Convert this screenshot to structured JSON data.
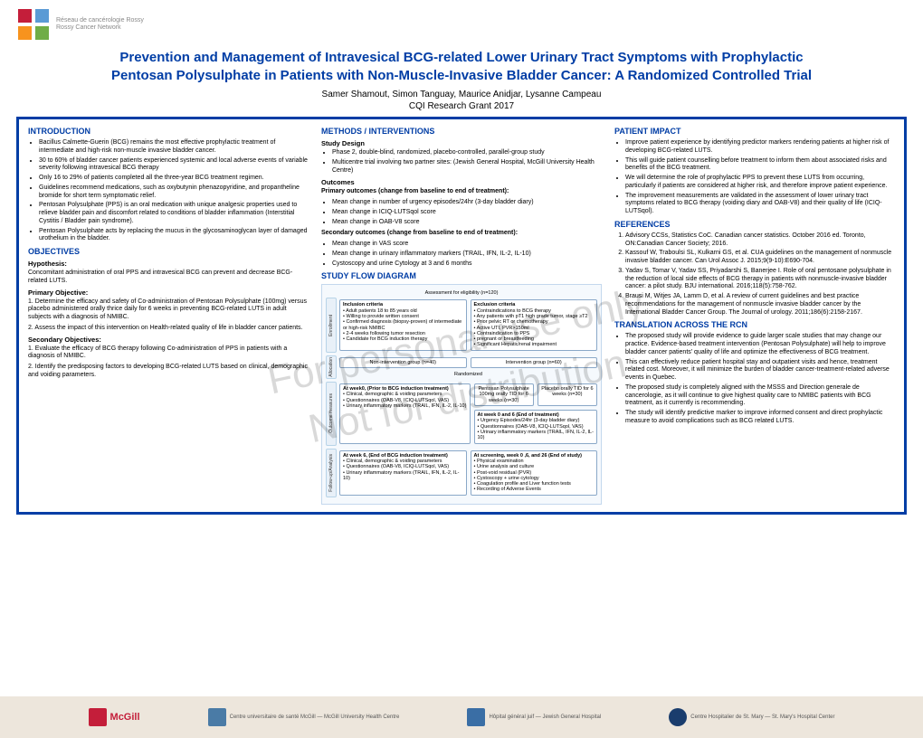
{
  "header": {
    "logo_text_fr": "Réseau de cancérologie Rossy",
    "logo_text_en": "Rossy Cancer Network",
    "title": "Prevention and Management of Intravesical BCG-related Lower Urinary Tract Symptoms with Prophylactic Pentosan Polysulphate in Patients with Non-Muscle-Invasive Bladder Cancer: A Randomized Controlled Trial",
    "authors": "Samer Shamout, Simon Tanguay, Maurice Anidjar, Lysanne Campeau",
    "grant": "CQI Research Grant 2017"
  },
  "watermark": {
    "line1": "For personal use only",
    "line2": "Not for distribution"
  },
  "introduction": {
    "heading": "INTRODUCTION",
    "bullets": [
      "Bacillus Calmette-Guerin (BCG) remains the most effective prophylactic treatment of intermediate and high-risk non-muscle invasive bladder cancer.",
      "30 to 60% of bladder cancer patients experienced systemic and local adverse events of variable severity following intravesical BCG therapy",
      "Only 16 to 29% of patients completed all the three-year BCG treatment regimen.",
      "Guidelines recommend medications, such as oxybutynin phenazopyridine, and propantheline bromide for short term symptomatic relief.",
      "Pentosan Polysulphate (PPS) is an oral medication with unique analgesic properties used to relieve bladder pain and discomfort related to conditions of bladder inflammation (Interstitial Cystitis / Bladder pain syndrome).",
      "Pentosan Polysulphate acts by replacing the mucus in the glycosaminoglycan layer of damaged urothelium in the bladder."
    ]
  },
  "objectives": {
    "heading": "OBJECTIVES",
    "hypothesis_label": "Hypothesis:",
    "hypothesis": "Concomitant administration of oral PPS and intravesical BCG can prevent and decrease BCG-related LUTS.",
    "primary_label": "Primary Objective:",
    "primary_items": [
      "1. Determine the efficacy and safety of Co-administration of Pentosan Polysulphate (100mg) versus placebo administered orally thrice daily for 6 weeks in preventing BCG-related LUTS in adult subjects with a diagnosis of NMIBC.",
      "2. Assess the impact of this intervention on Health-related quality of life in bladder cancer patients."
    ],
    "secondary_label": "Secondary Objectives:",
    "secondary_items": [
      "1. Evaluate the efficacy of BCG therapy following Co-administration of PPS in patients with a diagnosis of NMIBC.",
      "2. Identify the predisposing factors to developing BCG-related LUTS based on clinical, demographic and voiding parameters."
    ]
  },
  "methods": {
    "heading": "METHODS / INTERVENTIONS",
    "study_design_label": "Study Design",
    "study_design": [
      "Phase 2, double-blind, randomized, placebo-controlled, parallel-group study",
      "Multicentre trial involving two partner sites: (Jewish General Hospital, McGill University Health Centre)"
    ],
    "outcomes_label": "Outcomes",
    "primary_out_label": "Primary outcomes (change from baseline to end of treatment):",
    "primary_outcomes": [
      "Mean change in number of urgency episodes/24hr (3-day bladder diary)",
      "Mean change in ICIQ-LUTSqol score",
      "Mean change in OAB-V8 score"
    ],
    "secondary_out_label": "Secondary outcomes (change from baseline to end of treatment):",
    "secondary_outcomes": [
      "Mean change in VAS score",
      "Mean change in urinary inflammatory markers (TRAIL, IFN, IL-2, IL-10)",
      "Cystoscopy and urine Cytology at 3 and 6 months"
    ],
    "flow_heading": "STUDY FLOW DIAGRAM"
  },
  "diagram": {
    "assessment": "Assessment for eligibility (n=120)",
    "enrollment_label": "Enrollment",
    "inclusion_title": "Inclusion criteria",
    "inclusion": "• Adult patients 18 to 85 years old\n• Willing to provide written consent\n• Confirmed diagnosis (biopsy-proven) of intermediate or high-risk NMIBC\n• 2-4 weeks following tumor resection\n• Candidate for BCG induction therapy",
    "exclusion_title": "Exclusion criteria",
    "exclusion": "• Contraindications to BCG therapy\n• Any patients with pT1 high grade tumor, stage ≥T2\n• Prior pelvic RT or chemotherapy\n• Active UTI, PVR>150ml\n• Contraindication to PPS\n• pregnant or breastfeeding\n• Significant Hepatic/renal impairment",
    "allocation_label": "Allocation",
    "non_intervention": "Non-intervention group (n=40)",
    "intervention": "Intervention group (n=60)",
    "randomized": "Randomized",
    "outcome_label": "Outcome measures",
    "week0_title": "At week0, (Prior to BCG induction treatment)",
    "week0": "• Clinical, demographic & voiding parameters\n• Questionnaires (OAB-V8, ICIQ-LUTSqol, VAS)\n• Urinary inflammatory markers (TRAIL, IFN, IL-2, IL-10)",
    "pps_arm": "Pentosan Polysulphate 100mg orally TID for 6 weeks (n=30)",
    "placebo_arm": "Placebo orally TID for 6 weeks (n=30)",
    "week6_title": "At week 0 and 6 (End of treatment)",
    "week6": "• Urgency Episodes/24hr (3-day bladder diary)\n• Questionnaires (OAB-V8, ICIQ-LUTSqol, VAS)\n• Urinary inflammatory markers (TRAIL, IFN, IL-2, IL-10)",
    "followup_label": "Follow-up/Analysis",
    "endbcg_title": "At week 6, (End of BCG induction treatment)",
    "endbcg": "• Clinical, demographic & voiding parameters\n• Questionnaires (OAB-V8, ICIQ-LUTSqol, VAS)\n• Urinary inflammatory markers (TRAIL, IFN, IL-2, IL-10)",
    "screening_title": "At screening, week 0 ,6, and 26 (End of study)",
    "screening": "• Physical examination\n• Urine analysis and culture\n• Post-void residual (PVR)\n• Cystoscopy + urine cytology\n• Coagulation profile and Liver function tests\n• Recording of Adverse Events"
  },
  "impact": {
    "heading": "PATIENT IMPACT",
    "bullets": [
      "Improve patient experience by identifying predictor markers rendering patients at higher risk of developing BCG-related LUTS.",
      "This will guide patient counselling before treatment to inform them about associated risks and benefits of the BCG treatment.",
      "We will determine the role of prophylactic PPS to prevent these LUTS from occurring, particularly if patients are considered at higher risk, and therefore improve patient experience.",
      "The improvement measurements are validated in the assessment of lower urinary tract symptoms related to BCG therapy (voiding diary and OAB-V8) and their quality of life (ICIQ-LUTSqol)."
    ]
  },
  "references": {
    "heading": "REFERENCES",
    "items": [
      "Advisory CCSs, Statistics CoC. Canadian cancer statistics. October 2016 ed. Toronto, ON:Canadian Cancer Society; 2016.",
      "Kassouf W, Traboulsi SL, Kulkarni GS, et al. CUA guidelines on the management of nonmuscle invasive bladder cancer. Can Urol Assoc J. 2015;9(9-10):E690-704.",
      "Yadav S, Tomar V, Yadav SS, Priyadarshi S, Banerjee I. Role of oral pentosane polysulphate in the reduction of local side effects of BCG therapy in patients with nonmuscle-invasive bladder cancer: a pilot study. BJU international. 2016;118(5):758-762.",
      "Brausi M, Witjes JA, Lamm D, et al. A review of current guidelines and best practice recommendations for the management of nonmuscle invasive bladder cancer by the International Bladder Cancer Group. The Journal of urology. 2011;186(6):2158-2167."
    ]
  },
  "translation": {
    "heading": "TRANSLATION ACROSS THE RCN",
    "bullets": [
      "The proposed study will provide evidence to guide larger scale studies that may change our practice. Evidence-based treatment intervention (Pentosan Polysulphate) will help to improve bladder cancer patients' quality of life and optimize the effectiveness of BCG treatment.",
      "This can effectively reduce patient hospital stay and outpatient visits and hence, treatment related cost. Moreover, it will minimize the burden of bladder cancer-treatment-related adverse events in Quebec.",
      "The proposed study is completely aligned with the MSSS and Direction generale de cancerologie, as it will continue to give highest quality care to NMIBC patients with BCG treatment, as it currently is recommending.",
      "The study will identify predictive marker to improve informed consent and direct prophylactic measure to avoid complications such as BCG related LUTS."
    ]
  },
  "footer": {
    "mcgill": "McGill",
    "muhc": "Centre universitaire de santé McGill — McGill University Health Centre",
    "jgh": "Hôpital général juif — Jewish General Hospital",
    "stmary": "Centre Hospitalier de St. Mary — St. Mary's Hospital Center"
  }
}
